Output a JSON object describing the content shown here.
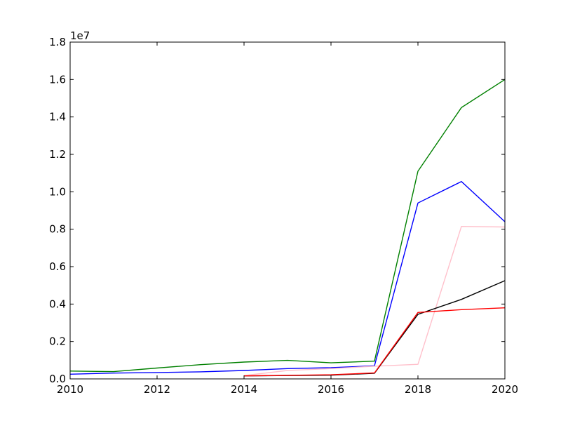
{
  "chart_data": {
    "type": "line",
    "title": "",
    "xlabel": "",
    "ylabel": "",
    "offset_label": "1e7",
    "xlim": [
      2010,
      2020
    ],
    "ylim": [
      0,
      1.8
    ],
    "x_ticks": [
      2010,
      2012,
      2014,
      2016,
      2018,
      2020
    ],
    "x_tick_labels": [
      "2010",
      "2012",
      "2014",
      "2016",
      "2018",
      "2020"
    ],
    "y_ticks": [
      0.0,
      0.2,
      0.4,
      0.6,
      0.8,
      1.0,
      1.2,
      1.4,
      1.6,
      1.8
    ],
    "y_tick_labels": [
      "0.0",
      "0.2",
      "0.4",
      "0.6",
      "0.8",
      "1.0",
      "1.2",
      "1.4",
      "1.6",
      "1.8"
    ],
    "grid": false,
    "legend": "none",
    "series": [
      {
        "color": "#008000",
        "x": [
          2010,
          2011,
          2012,
          2013,
          2014,
          2015,
          2016,
          2017,
          2018,
          2019,
          2020
        ],
        "values": [
          0.042,
          0.039,
          0.058,
          0.076,
          0.09,
          0.099,
          0.086,
          0.095,
          1.11,
          1.45,
          1.6
        ]
      },
      {
        "color": "#0000ff",
        "x": [
          2010,
          2011,
          2012,
          2013,
          2014,
          2015,
          2016,
          2017,
          2018,
          2019,
          2020
        ],
        "values": [
          0.025,
          0.031,
          0.034,
          0.038,
          0.045,
          0.055,
          0.06,
          0.07,
          0.94,
          1.055,
          0.84
        ]
      },
      {
        "color": "#ffc0cb",
        "x": [
          2014,
          2015,
          2016,
          2017,
          2018,
          2019,
          2020
        ],
        "values": [
          0.018,
          0.045,
          0.055,
          0.068,
          0.078,
          0.815,
          0.812
        ]
      },
      {
        "color": "#000000",
        "x": [
          2014,
          2015,
          2016,
          2017,
          2018,
          2019,
          2020
        ],
        "values": [
          0.016,
          0.018,
          0.02,
          0.03,
          0.345,
          0.425,
          0.525
        ]
      },
      {
        "color": "#ff0000",
        "x": [
          2014,
          2015,
          2016,
          2017,
          2018,
          2019,
          2020
        ],
        "values": [
          0.016,
          0.019,
          0.022,
          0.032,
          0.355,
          0.37,
          0.38
        ]
      }
    ]
  }
}
